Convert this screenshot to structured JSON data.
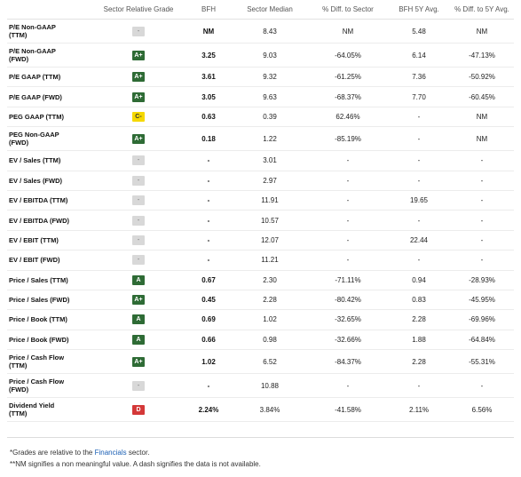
{
  "headers": [
    "",
    "Sector Relative Grade",
    "BFH",
    "Sector Median",
    "% Diff. to Sector",
    "BFH 5Y Avg.",
    "% Diff. to 5Y Avg."
  ],
  "rows": [
    {
      "metric": [
        "P/E Non-GAAP",
        "(TTM)"
      ],
      "grade": "-",
      "grade_class": "none",
      "bfh": "NM",
      "median": "8.43",
      "diff_sector": "NM",
      "avg5y": "5.48",
      "diff_5y": "NM",
      "tall": true
    },
    {
      "metric": [
        "P/E Non-GAAP",
        "(FWD)"
      ],
      "grade": "A+",
      "grade_class": "a",
      "bfh": "3.25",
      "median": "9.03",
      "diff_sector": "-64.05%",
      "avg5y": "6.14",
      "diff_5y": "-47.13%",
      "tall": true
    },
    {
      "metric": [
        "P/E GAAP (TTM)"
      ],
      "grade": "A+",
      "grade_class": "a",
      "bfh": "3.61",
      "median": "9.32",
      "diff_sector": "-61.25%",
      "avg5y": "7.36",
      "diff_5y": "-50.92%",
      "tall": false
    },
    {
      "metric": [
        "P/E GAAP (FWD)"
      ],
      "grade": "A+",
      "grade_class": "a",
      "bfh": "3.05",
      "median": "9.63",
      "diff_sector": "-68.37%",
      "avg5y": "7.70",
      "diff_5y": "-60.45%",
      "tall": false
    },
    {
      "metric": [
        "PEG GAAP (TTM)"
      ],
      "grade": "C-",
      "grade_class": "c",
      "bfh": "0.63",
      "median": "0.39",
      "diff_sector": "62.46%",
      "avg5y": "-",
      "diff_5y": "NM",
      "tall": false
    },
    {
      "metric": [
        "PEG Non-GAAP",
        "(FWD)"
      ],
      "grade": "A+",
      "grade_class": "a",
      "bfh": "0.18",
      "median": "1.22",
      "diff_sector": "-85.19%",
      "avg5y": "-",
      "diff_5y": "NM",
      "tall": true
    },
    {
      "metric": [
        "EV / Sales (TTM)"
      ],
      "grade": "-",
      "grade_class": "none",
      "bfh": "-",
      "median": "3.01",
      "diff_sector": "-",
      "avg5y": "-",
      "diff_5y": "-",
      "tall": false
    },
    {
      "metric": [
        "EV / Sales (FWD)"
      ],
      "grade": "-",
      "grade_class": "none",
      "bfh": "-",
      "median": "2.97",
      "diff_sector": "-",
      "avg5y": "-",
      "diff_5y": "-",
      "tall": false
    },
    {
      "metric": [
        "EV / EBITDA (TTM)"
      ],
      "grade": "-",
      "grade_class": "none",
      "bfh": "-",
      "median": "11.91",
      "diff_sector": "-",
      "avg5y": "19.65",
      "diff_5y": "-",
      "tall": false
    },
    {
      "metric": [
        "EV / EBITDA (FWD)"
      ],
      "grade": "-",
      "grade_class": "none",
      "bfh": "-",
      "median": "10.57",
      "diff_sector": "-",
      "avg5y": "-",
      "diff_5y": "-",
      "tall": false
    },
    {
      "metric": [
        "EV / EBIT (TTM)"
      ],
      "grade": "-",
      "grade_class": "none",
      "bfh": "-",
      "median": "12.07",
      "diff_sector": "-",
      "avg5y": "22.44",
      "diff_5y": "-",
      "tall": false
    },
    {
      "metric": [
        "EV / EBIT (FWD)"
      ],
      "grade": "-",
      "grade_class": "none",
      "bfh": "-",
      "median": "11.21",
      "diff_sector": "-",
      "avg5y": "-",
      "diff_5y": "-",
      "tall": false
    },
    {
      "metric": [
        "Price / Sales (TTM)"
      ],
      "grade": "A",
      "grade_class": "a",
      "bfh": "0.67",
      "median": "2.30",
      "diff_sector": "-71.11%",
      "avg5y": "0.94",
      "diff_5y": "-28.93%",
      "tall": false
    },
    {
      "metric": [
        "Price / Sales (FWD)"
      ],
      "grade": "A+",
      "grade_class": "a",
      "bfh": "0.45",
      "median": "2.28",
      "diff_sector": "-80.42%",
      "avg5y": "0.83",
      "diff_5y": "-45.95%",
      "tall": false
    },
    {
      "metric": [
        "Price / Book (TTM)"
      ],
      "grade": "A",
      "grade_class": "a",
      "bfh": "0.69",
      "median": "1.02",
      "diff_sector": "-32.65%",
      "avg5y": "2.28",
      "diff_5y": "-69.96%",
      "tall": false
    },
    {
      "metric": [
        "Price / Book (FWD)"
      ],
      "grade": "A",
      "grade_class": "a",
      "bfh": "0.66",
      "median": "0.98",
      "diff_sector": "-32.66%",
      "avg5y": "1.88",
      "diff_5y": "-64.84%",
      "tall": false
    },
    {
      "metric": [
        "Price / Cash Flow",
        "(TTM)"
      ],
      "grade": "A+",
      "grade_class": "a",
      "bfh": "1.02",
      "median": "6.52",
      "diff_sector": "-84.37%",
      "avg5y": "2.28",
      "diff_5y": "-55.31%",
      "tall": true
    },
    {
      "metric": [
        "Price / Cash Flow",
        "(FWD)"
      ],
      "grade": "-",
      "grade_class": "none",
      "bfh": "-",
      "median": "10.88",
      "diff_sector": "-",
      "avg5y": "-",
      "diff_5y": "-",
      "tall": true
    },
    {
      "metric": [
        "Dividend Yield",
        "(TTM)"
      ],
      "grade": "D",
      "grade_class": "d",
      "bfh": "2.24%",
      "median": "3.84%",
      "diff_sector": "-41.58%",
      "avg5y": "2.11%",
      "diff_5y": "6.56%",
      "tall": true
    }
  ],
  "footnotes": {
    "line1_pre": "*Grades are relative to the ",
    "line1_link": "Financials",
    "line1_post": " sector.",
    "line2": "**NM signifies a non meaningful value. A dash signifies the data is not available."
  },
  "colors": {
    "grade_a": "#2e6b35",
    "grade_c": "#f5d800",
    "grade_d": "#d43838",
    "grade_none": "#d8d8d8",
    "link": "#1a5fb4"
  }
}
